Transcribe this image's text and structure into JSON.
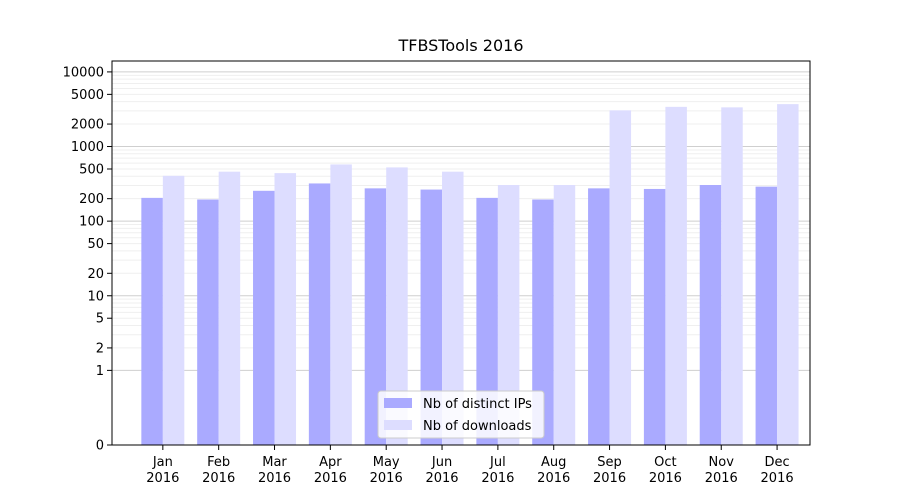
{
  "chart_data": {
    "type": "bar",
    "title": "TFBSTools 2016",
    "xlabel": "",
    "ylabel": "",
    "y_scale": "symlog",
    "ylim": [
      0,
      14000
    ],
    "y_ticks": [
      0,
      1,
      2,
      5,
      10,
      20,
      50,
      100,
      200,
      500,
      1000,
      2000,
      5000,
      10000
    ],
    "grid": true,
    "legend_position": "lower-center",
    "categories": [
      [
        "Jan",
        "2016"
      ],
      [
        "Feb",
        "2016"
      ],
      [
        "Mar",
        "2016"
      ],
      [
        "Apr",
        "2016"
      ],
      [
        "May",
        "2016"
      ],
      [
        "Jun",
        "2016"
      ],
      [
        "Jul",
        "2016"
      ],
      [
        "Aug",
        "2016"
      ],
      [
        "Sep",
        "2016"
      ],
      [
        "Oct",
        "2016"
      ],
      [
        "Nov",
        "2016"
      ],
      [
        "Dec",
        "2016"
      ]
    ],
    "series": [
      {
        "name": "Nb of distinct IPs",
        "color": "#aaaaff",
        "values": [
          205,
          195,
          255,
          320,
          275,
          265,
          205,
          195,
          275,
          270,
          305,
          290
        ]
      },
      {
        "name": "Nb of downloads",
        "color": "#ddddff",
        "values": [
          405,
          460,
          440,
          575,
          525,
          460,
          305,
          305,
          3050,
          3400,
          3350,
          3700
        ]
      }
    ]
  }
}
